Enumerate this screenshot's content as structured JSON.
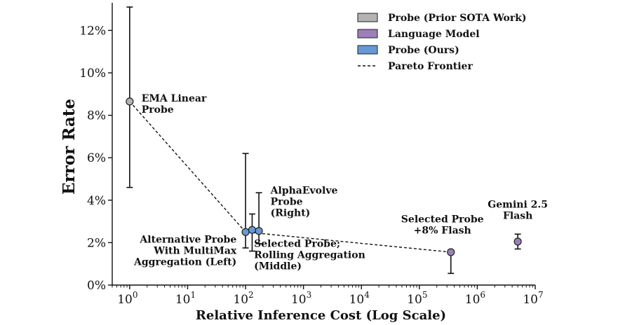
{
  "chart_data": {
    "type": "scatter",
    "xscale": "log",
    "xlabel": "Relative Inference Cost (Log Scale)",
    "ylabel": "Error Rate",
    "xlim": [
      0.5,
      10000000
    ],
    "ylim": [
      0,
      13.3
    ],
    "xticks": [
      {
        "value": 1,
        "base": "10",
        "exp": "0"
      },
      {
        "value": 10,
        "base": "10",
        "exp": "1"
      },
      {
        "value": 100,
        "base": "10",
        "exp": "2"
      },
      {
        "value": 1000,
        "base": "10",
        "exp": "3"
      },
      {
        "value": 10000,
        "base": "10",
        "exp": "4"
      },
      {
        "value": 100000,
        "base": "10",
        "exp": "5"
      },
      {
        "value": 1000000,
        "base": "10",
        "exp": "6"
      },
      {
        "value": 10000000,
        "base": "10",
        "exp": "7"
      }
    ],
    "yticks": [
      {
        "value": 0,
        "label": "0%"
      },
      {
        "value": 2,
        "label": "2%"
      },
      {
        "value": 4,
        "label": "4%"
      },
      {
        "value": 6,
        "label": "6%"
      },
      {
        "value": 8,
        "label": "8%"
      },
      {
        "value": 10,
        "label": "10%"
      },
      {
        "value": 12,
        "label": "12%"
      }
    ],
    "series": [
      {
        "name": "Probe (Prior SOTA Work)",
        "color": "#b3b3b3",
        "points": [
          {
            "id": "ema-linear-probe",
            "x": 1,
            "y": 8.65,
            "err_low": 4.6,
            "err_high": 13.1
          }
        ]
      },
      {
        "name": "Language Model",
        "color": "#9b80b8",
        "points": [
          {
            "id": "selected-probe-8pct-flash",
            "x": 350000,
            "y": 1.55,
            "err_low": 0.55,
            "err_high": 1.65
          },
          {
            "id": "gemini-2-5-flash",
            "x": 5000000,
            "y": 2.05,
            "err_low": 1.7,
            "err_high": 2.4
          }
        ]
      },
      {
        "name": "Probe (Ours)",
        "color": "#6699d6",
        "points": [
          {
            "id": "alternative-probe-multimax",
            "x": 100,
            "y": 2.5,
            "err_low": 1.75,
            "err_high": 6.2
          },
          {
            "id": "selected-probe-rolling",
            "x": 130,
            "y": 2.6,
            "err_low": 1.6,
            "err_high": 3.35
          },
          {
            "id": "alphaevolve-probe",
            "x": 170,
            "y": 2.55,
            "err_low": 1.95,
            "err_high": 4.35
          }
        ]
      }
    ],
    "pareto_frontier": [
      {
        "x": 1,
        "y": 8.65
      },
      {
        "x": 100,
        "y": 2.5
      },
      {
        "x": 350000,
        "y": 1.55
      }
    ],
    "legend": {
      "placement": "top-right",
      "entries": [
        {
          "label": "Probe (Prior SOTA Work)",
          "kind": "patch",
          "color": "#b3b3b3"
        },
        {
          "label": "Language Model",
          "kind": "patch",
          "color": "#9b80b8"
        },
        {
          "label": "Probe (Ours)",
          "kind": "patch",
          "color": "#6699d6"
        },
        {
          "label": "Pareto Frontier",
          "kind": "dashed-line",
          "color": "#111111"
        }
      ]
    },
    "annotations": [
      {
        "id": "ema-linear-probe-label",
        "lines": [
          "EMA Linear",
          "Probe"
        ],
        "x": 1.6,
        "y": 8.65,
        "align": "start"
      },
      {
        "id": "alphaevolve-probe-label",
        "lines": [
          "AlphaEvolve",
          "Probe",
          "(Right)"
        ],
        "x": 270,
        "y": 4.3,
        "align": "start"
      },
      {
        "id": "alternative-probe-label",
        "lines": [
          "Alternative Probe",
          "With MultiMax",
          "Aggregation (Left)"
        ],
        "x": 70,
        "y": 2.0,
        "align": "end"
      },
      {
        "id": "selected-probe-rolling-label",
        "lines": [
          "Selected Probe;",
          "Rolling Aggregation",
          "(Middle)"
        ],
        "x": 140,
        "y": 1.8,
        "align": "start"
      },
      {
        "id": "selected-probe-8pct-label",
        "lines": [
          "Selected Probe",
          "+8% Flash"
        ],
        "x": 250000,
        "y": 2.95,
        "align": "middle"
      },
      {
        "id": "gemini-label",
        "lines": [
          "Gemini 2.5",
          "Flash"
        ],
        "x": 5000000,
        "y": 3.65,
        "align": "middle"
      }
    ]
  }
}
